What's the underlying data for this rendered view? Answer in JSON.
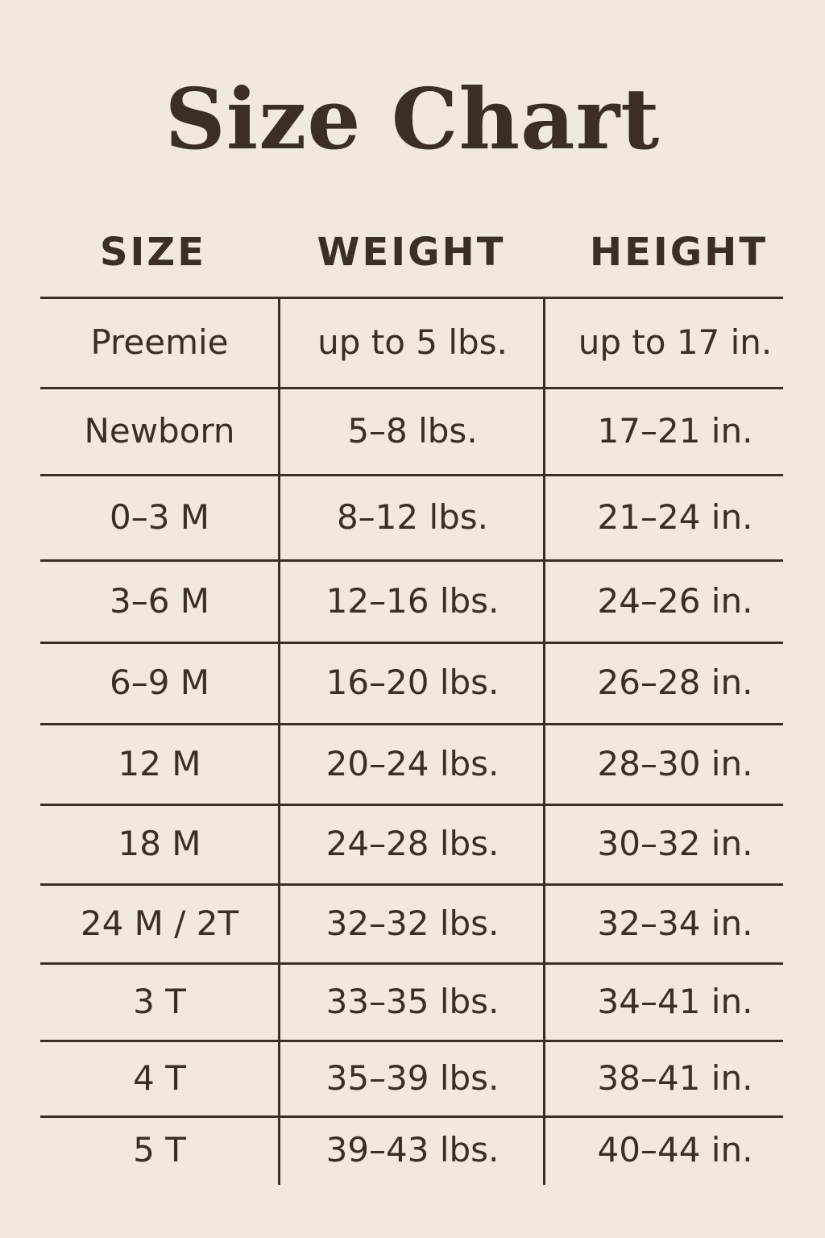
{
  "title": "Size Chart",
  "colors": {
    "background": "#f1e9dd",
    "text": "#3b2e25"
  },
  "headers": [
    "SIZE",
    "WEIGHT",
    "HEIGHT"
  ],
  "rows": [
    [
      "Preemie",
      "up to 5 lbs.",
      "up to 17 in."
    ],
    [
      "Newborn",
      "5–8 lbs.",
      "17–21 in."
    ],
    [
      "0–3 M",
      "8–12 lbs.",
      "21–24 in."
    ],
    [
      "3–6 M",
      "12–16 lbs.",
      "24–26 in."
    ],
    [
      "6–9 M",
      "16–20 lbs.",
      "26–28 in."
    ],
    [
      "12 M",
      "20–24 lbs.",
      "28–30 in."
    ],
    [
      "18 M",
      "24–28 lbs.",
      "30–32 in."
    ],
    [
      "24 M / 2T",
      "32–32 lbs.",
      "32–34 in."
    ],
    [
      "3 T",
      "33–35 lbs.",
      "34–41 in."
    ],
    [
      "4 T",
      "35–39 lbs.",
      "38–41 in."
    ],
    [
      "5 T",
      "39–43 lbs.",
      "40–44 in."
    ]
  ]
}
